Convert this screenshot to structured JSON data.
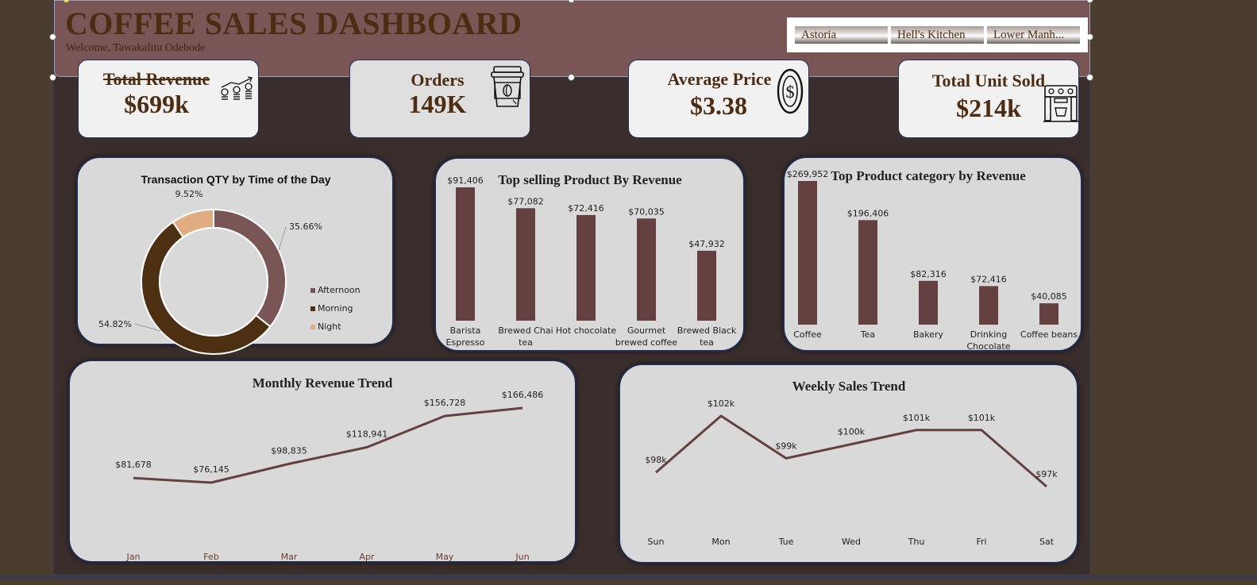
{
  "header": {
    "title": "COFFEE SALES DASHBOARD",
    "welcome": "Welcome, Tawakalitu Odebode"
  },
  "slicer": {
    "items": [
      "Astoria",
      "Hell's Kitchen",
      "Lower Manh..."
    ]
  },
  "kpis": [
    {
      "label": "Total Revenue",
      "value": "$699k",
      "icon": "money-growth-icon"
    },
    {
      "label": "Orders",
      "value": "149K",
      "icon": "coffee-cup-icon"
    },
    {
      "label": "Average Price",
      "value": "$3.38",
      "icon": "dollar-coin-icon"
    },
    {
      "label": "Total Unit Sold",
      "value": "$214k",
      "icon": "espresso-machine-icon"
    }
  ],
  "colors": {
    "bar": "#654040",
    "afternoon": "#795555",
    "morning": "#4d2f12",
    "night": "#e2ac83",
    "line": "#654040"
  },
  "chart_data": [
    {
      "type": "pie",
      "title": "Transaction QTY by Time of the Day",
      "categories": [
        "Afternoon",
        "Morning",
        "Night"
      ],
      "values": [
        35.66,
        54.82,
        9.52
      ],
      "labels": [
        "35.66%",
        "54.82%",
        "9.52%"
      ],
      "legend": "right"
    },
    {
      "type": "bar",
      "title": "Top selling Product By Revenue",
      "categories": [
        [
          "Barista",
          "Espresso"
        ],
        [
          "Brewed Chai",
          "tea"
        ],
        [
          "Hot chocolate"
        ],
        [
          "Gourmet",
          "brewed coffee"
        ],
        [
          "Brewed Black",
          "tea"
        ]
      ],
      "values": [
        91406,
        77082,
        72416,
        70035,
        47932
      ],
      "labels": [
        "$91,406",
        "$77,082",
        "$72,416",
        "$70,035",
        "$47,932"
      ]
    },
    {
      "type": "bar",
      "title": "Top Product category by Revenue",
      "categories": [
        [
          "Coffee"
        ],
        [
          "Tea"
        ],
        [
          "Bakery"
        ],
        [
          "Drinking",
          "Chocolate"
        ],
        [
          "Coffee beans"
        ]
      ],
      "values": [
        269952,
        196406,
        82316,
        72416,
        40085
      ],
      "labels": [
        "$269,952",
        "$196,406",
        "$82,316",
        "$72,416",
        "$40,085"
      ]
    },
    {
      "type": "line",
      "title": "Monthly Revenue Trend",
      "categories": [
        "Jan",
        "Feb",
        "Mar",
        "Apr",
        "May",
        "Jun"
      ],
      "values": [
        81678,
        76145,
        98835,
        118941,
        156728,
        166486
      ],
      "labels": [
        "$81,678",
        "$76,145",
        "$98,835",
        "$118,941",
        "$156,728",
        "$166,486"
      ]
    },
    {
      "type": "line",
      "title": "Weekly Sales Trend",
      "categories": [
        "Sun",
        "Mon",
        "Tue",
        "Wed",
        "Thu",
        "Fri",
        "Sat"
      ],
      "values": [
        98,
        102,
        99,
        100,
        101,
        101,
        97
      ],
      "labels": [
        "$98k",
        "$102k",
        "$99k",
        "$100k",
        "$101k",
        "$101k",
        "$97k"
      ]
    }
  ]
}
